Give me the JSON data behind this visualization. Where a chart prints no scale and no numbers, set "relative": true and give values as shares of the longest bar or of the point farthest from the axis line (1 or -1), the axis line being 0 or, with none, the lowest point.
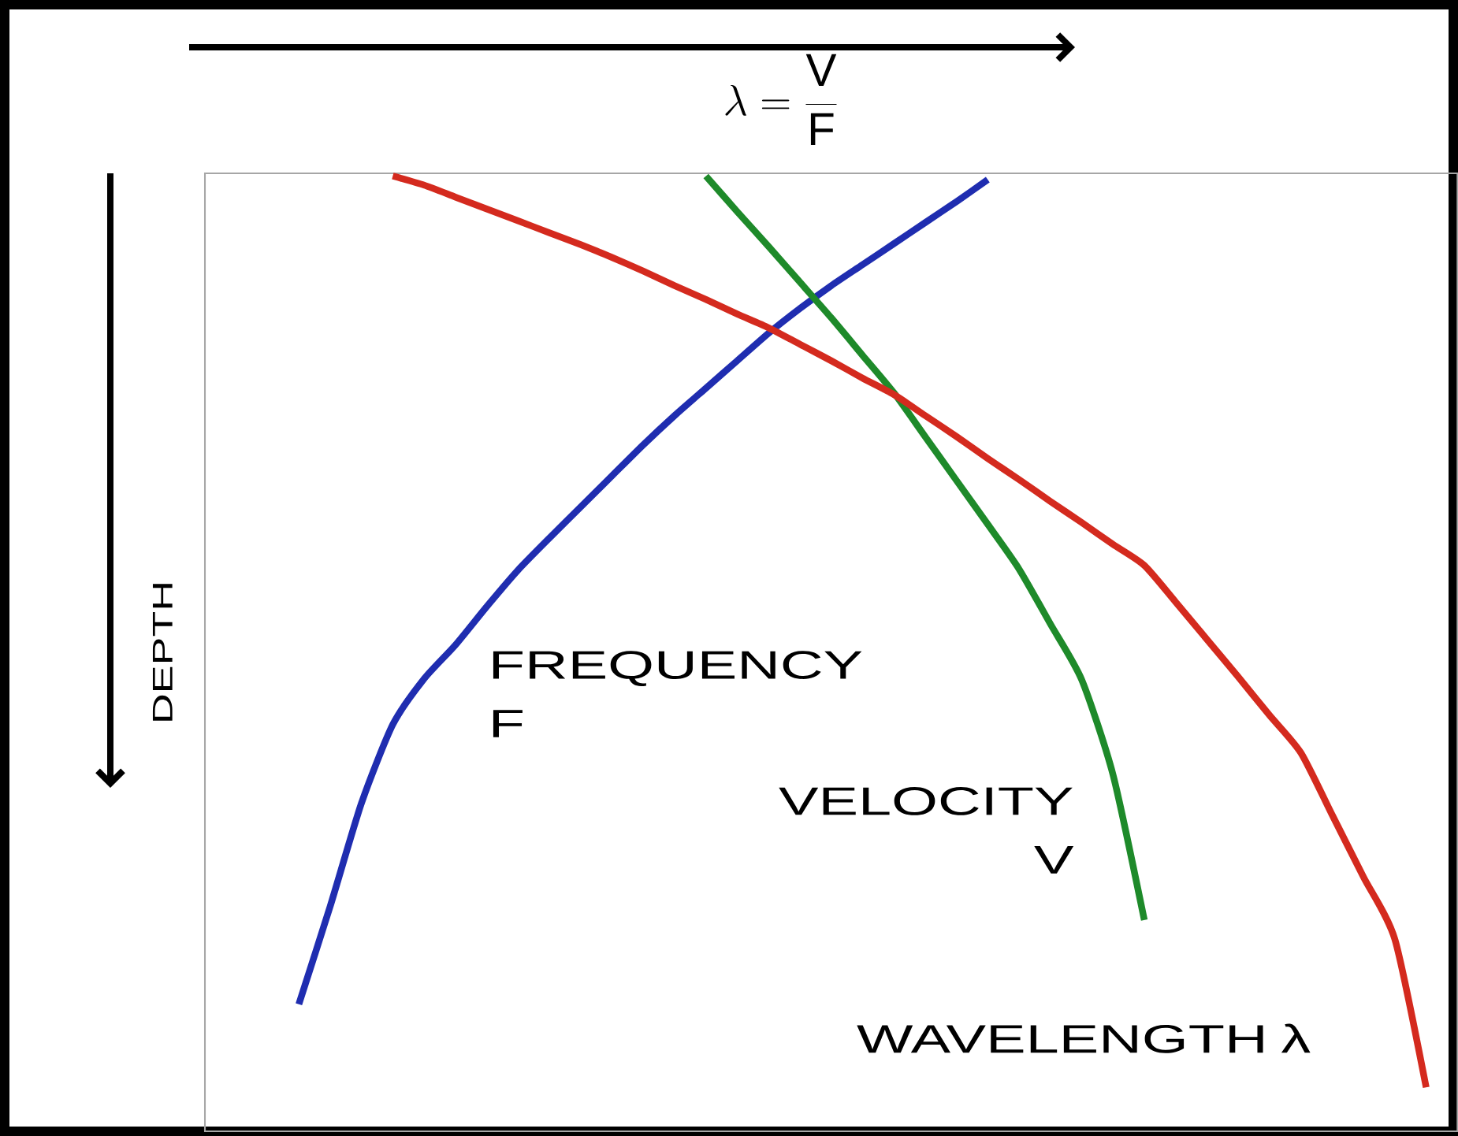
{
  "chart_data": {
    "type": "line",
    "relative": true,
    "title": "\\lambda = \\frac{\\mathrm{V}}{\\mathrm{F}}",
    "ylabel": "DEPTH",
    "categories": [
      null,
      null,
      null,
      null,
      null,
      null,
      null,
      null,
      null,
      null,
      null,
      null,
      null,
      null,
      null,
      null,
      null,
      null,
      null,
      null,
      null,
      null,
      null,
      null,
      null,
      null,
      null,
      null,
      null,
      null,
      null,
      null,
      null,
      null,
      null,
      null,
      null,
      null,
      null,
      null
    ],
    "series": [
      {
        "name": "FREQUENCY F",
        "color": "#1f2db0",
        "values": [
          null,
          null,
          null,
          -0.909,
          -0.802,
          -0.689,
          -0.603,
          -0.553,
          -0.516,
          -0.474,
          -0.434,
          -0.399,
          -0.365,
          -0.331,
          -0.297,
          -0.265,
          -0.235,
          -0.205,
          -0.175,
          -0.148,
          -0.123,
          -0.1,
          -0.077,
          -0.054,
          -0.031,
          -0.007,
          null,
          null,
          null,
          null,
          null,
          null,
          null,
          null,
          null,
          null,
          null,
          null,
          null,
          null
        ]
      },
      {
        "name": "VELOCITY V",
        "color": "#1e8a2a",
        "values": [
          null,
          null,
          null,
          null,
          null,
          null,
          null,
          null,
          null,
          null,
          null,
          null,
          null,
          null,
          null,
          null,
          -0.003,
          -0.042,
          -0.08,
          -0.119,
          -0.158,
          -0.199,
          -0.24,
          -0.288,
          -0.336,
          -0.384,
          -0.433,
          -0.493,
          -0.554,
          -0.658,
          -0.817,
          null,
          null,
          null,
          null,
          null,
          null,
          null,
          null,
          null
        ]
      },
      {
        "name": "WAVELENGTH λ",
        "color": "#d42a1e",
        "values": [
          null,
          null,
          null,
          null,
          null,
          null,
          -0.003,
          -0.013,
          -0.026,
          -0.039,
          -0.052,
          -0.065,
          -0.078,
          -0.092,
          -0.107,
          -0.123,
          -0.138,
          -0.154,
          -0.169,
          -0.187,
          -0.205,
          -0.224,
          -0.242,
          -0.265,
          -0.288,
          -0.312,
          -0.335,
          -0.359,
          -0.382,
          -0.406,
          -0.429,
          -0.469,
          -0.51,
          -0.551,
          -0.593,
          -0.634,
          -0.702,
          -0.77,
          -0.838,
          -1
        ]
      }
    ]
  }
}
